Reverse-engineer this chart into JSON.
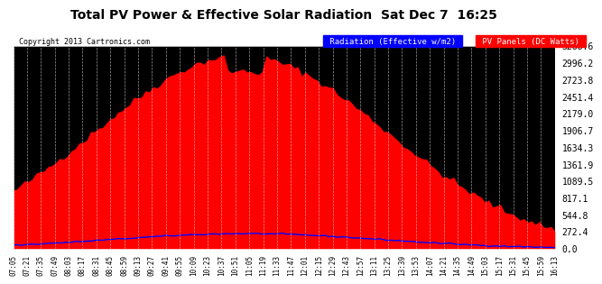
{
  "title": "Total PV Power & Effective Solar Radiation  Sat Dec 7  16:25",
  "copyright": "Copyright 2013 Cartronics.com",
  "legend": [
    "Radiation (Effective w/m2)",
    "PV Panels (DC Watts)"
  ],
  "legend_colors": [
    "blue",
    "red"
  ],
  "legend_bg": [
    "blue",
    "red"
  ],
  "legend_text_colors": [
    "white",
    "white"
  ],
  "y_ticks": [
    0.0,
    272.4,
    544.8,
    817.1,
    1089.5,
    1361.9,
    1634.3,
    1906.7,
    2179.0,
    2451.4,
    2723.8,
    2996.2,
    3268.6
  ],
  "y_max": 3268.6,
  "background_color": "#000000",
  "figure_bg": "#ffffff",
  "grid_color": "#ffffff",
  "x_labels": [
    "07:05",
    "07:21",
    "07:35",
    "07:49",
    "08:03",
    "08:17",
    "08:31",
    "08:45",
    "08:59",
    "09:13",
    "09:27",
    "09:41",
    "09:55",
    "10:09",
    "10:23",
    "10:37",
    "10:51",
    "11:05",
    "11:19",
    "11:33",
    "11:47",
    "12:01",
    "12:15",
    "12:29",
    "12:43",
    "12:57",
    "13:11",
    "13:25",
    "13:39",
    "13:53",
    "14:07",
    "14:21",
    "14:35",
    "14:49",
    "15:03",
    "15:17",
    "15:31",
    "15:45",
    "15:59",
    "16:13"
  ]
}
